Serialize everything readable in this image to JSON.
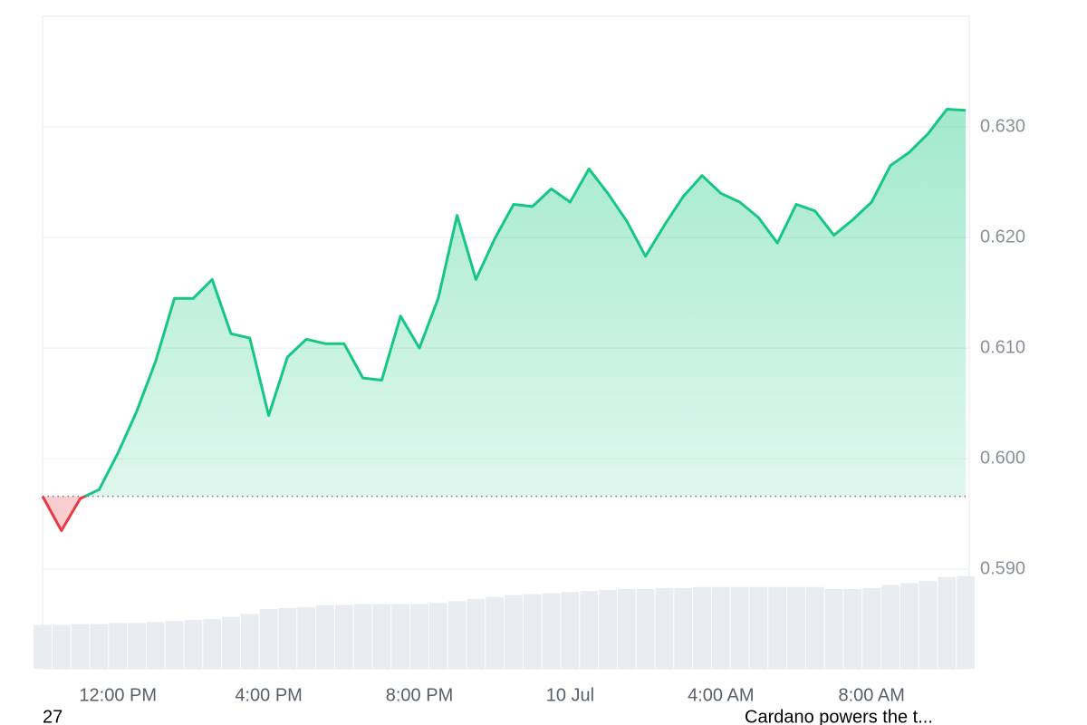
{
  "chart_data": {
    "type": "line",
    "categories": [
      null,
      null,
      null,
      null,
      "12:00 PM",
      null,
      null,
      null,
      null,
      null,
      null,
      null,
      "4:00 PM",
      null,
      null,
      null,
      null,
      null,
      null,
      null,
      "8:00 PM",
      null,
      null,
      null,
      null,
      null,
      null,
      null,
      "10 Jul",
      null,
      null,
      null,
      null,
      null,
      null,
      null,
      "4:00 AM",
      null,
      null,
      null,
      null,
      null,
      null,
      null,
      "8:00 AM",
      null,
      null,
      null,
      null,
      null
    ],
    "series": [
      {
        "color": "#16c784",
        "negative_color": "#ea3943",
        "values": [
          0.5966,
          0.5935,
          0.5964,
          0.5972,
          0.6005,
          0.6043,
          0.6088,
          0.6145,
          0.6145,
          0.6162,
          0.6113,
          0.6109,
          0.6039,
          0.6092,
          0.6108,
          0.6104,
          0.6104,
          0.6073,
          0.6071,
          0.6129,
          0.61,
          0.6145,
          0.622,
          0.6162,
          0.6199,
          0.623,
          0.6228,
          0.6244,
          0.6232,
          0.6262,
          0.624,
          0.6215,
          0.6183,
          0.6211,
          0.6237,
          0.6256,
          0.624,
          0.6232,
          0.6218,
          0.6195,
          0.623,
          0.6224,
          0.6202,
          0.6216,
          0.6232,
          0.6265,
          0.6277,
          0.6294,
          0.6316,
          0.6315
        ]
      }
    ],
    "reference_line": 0.5966,
    "ylim": [
      0.581,
      0.64
    ],
    "yticks": [
      {
        "value": 0.59,
        "label": "0.590"
      },
      {
        "value": 0.6,
        "label": "0.600"
      },
      {
        "value": 0.61,
        "label": "0.610"
      },
      {
        "value": 0.62,
        "label": "0.620"
      },
      {
        "value": 0.63,
        "label": "0.630"
      }
    ],
    "grid": true,
    "volume": {
      "color": "#e9edf1",
      "ylim": [
        0,
        100
      ],
      "values": [
        44,
        44,
        45,
        45,
        46,
        46,
        47,
        48,
        49,
        50,
        52,
        55,
        60,
        61,
        62,
        64,
        64,
        65,
        65,
        65,
        65,
        66,
        68,
        70,
        72,
        74,
        75,
        76,
        77,
        78,
        79,
        80,
        80,
        81,
        81,
        82,
        82,
        82,
        82,
        82,
        82,
        82,
        80,
        80,
        81,
        84,
        86,
        88,
        92,
        93
      ]
    }
  },
  "footer": {
    "left": "27",
    "right": "Cardano powers the t..."
  }
}
